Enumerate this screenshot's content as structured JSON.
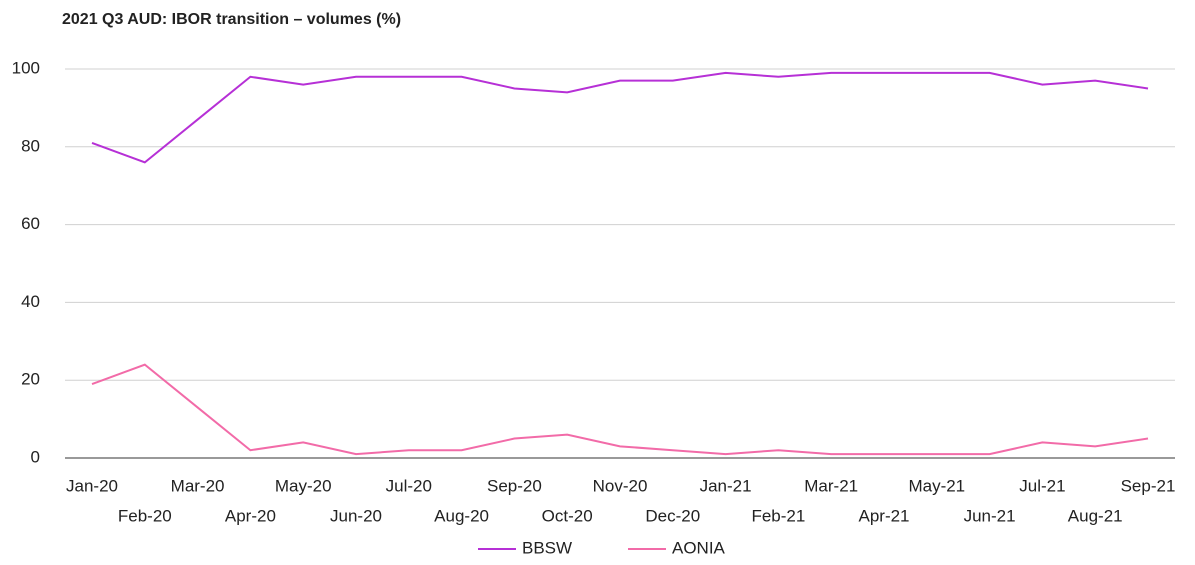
{
  "chart_data": {
    "type": "line",
    "title": "2021 Q3 AUD: IBOR transition – volumes (%)",
    "categories": [
      "Jan-20",
      "Feb-20",
      "Mar-20",
      "Apr-20",
      "May-20",
      "Jun-20",
      "Jul-20",
      "Aug-20",
      "Sep-20",
      "Oct-20",
      "Nov-20",
      "Dec-20",
      "Jan-21",
      "Feb-21",
      "Mar-21",
      "Apr-21",
      "May-21",
      "Jun-21",
      "Jul-21",
      "Aug-21",
      "Sep-21"
    ],
    "series": [
      {
        "name": "BBSW",
        "color": "#b630d6",
        "values": [
          81,
          76,
          87,
          98,
          96,
          98,
          98,
          98,
          95,
          94,
          97,
          97,
          99,
          98,
          99,
          99,
          99,
          99,
          96,
          97,
          95
        ]
      },
      {
        "name": "AONIA",
        "color": "#f26ba8",
        "values": [
          19,
          24,
          13,
          2,
          4,
          1,
          2,
          2,
          5,
          6,
          3,
          2,
          1,
          2,
          1,
          1,
          1,
          1,
          4,
          3,
          5
        ]
      }
    ],
    "ylim": [
      0,
      100
    ],
    "yticks": [
      0,
      20,
      40,
      60,
      80,
      100
    ],
    "grid": true,
    "legend": "bottom"
  }
}
